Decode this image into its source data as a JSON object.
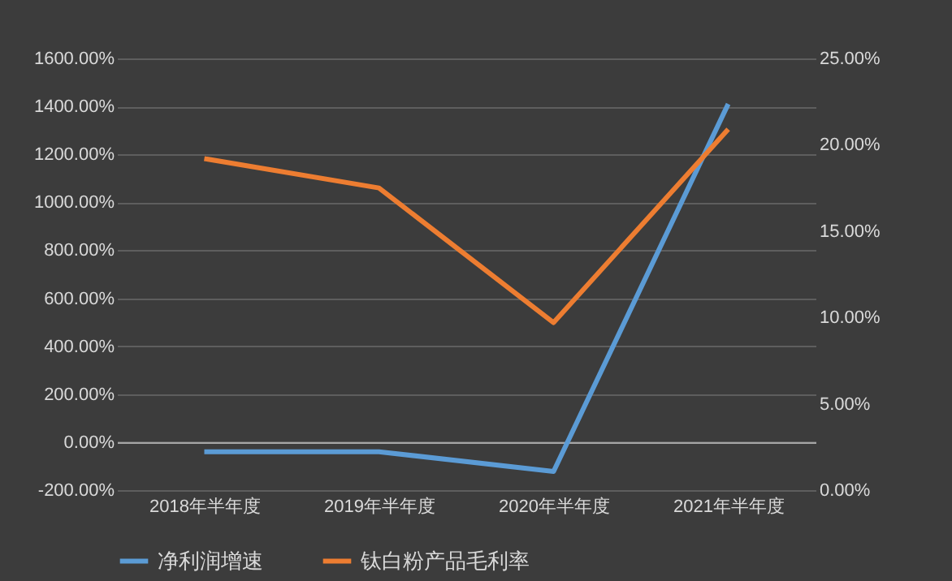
{
  "chart_data": {
    "type": "line",
    "categories": [
      "2018年半年度",
      "2019年半年度",
      "2020年半年度",
      "2021年半年度"
    ],
    "series": [
      {
        "name": "净利润增速",
        "color": "#5b9bd5",
        "values": [
          -40,
          -40,
          -122,
          1410
        ]
      },
      {
        "name": "钛白粉产品毛利率",
        "color": "#ed7d31",
        "values": [
          19.2,
          17.5,
          9.7,
          20.9
        ],
        "axis": "y2"
      }
    ],
    "ylim": [
      -200,
      1600
    ],
    "yticks": [
      {
        "value": -200,
        "label": "-200.00%"
      },
      {
        "value": 0,
        "label": "0.00%"
      },
      {
        "value": 200,
        "label": "200.00%"
      },
      {
        "value": 400,
        "label": "400.00%"
      },
      {
        "value": 600,
        "label": "600.00%"
      },
      {
        "value": 800,
        "label": "800.00%"
      },
      {
        "value": 1000,
        "label": "1000.00%"
      },
      {
        "value": 1200,
        "label": "1200.00%"
      },
      {
        "value": 1400,
        "label": "1400.00%"
      },
      {
        "value": 1600,
        "label": "1600.00%"
      }
    ],
    "y2lim": [
      0,
      25
    ],
    "y2ticks": [
      {
        "value": 0,
        "label": "0.00%"
      },
      {
        "value": 5,
        "label": "5.00%"
      },
      {
        "value": 10,
        "label": "10.00%"
      },
      {
        "value": 15,
        "label": "15.00%"
      },
      {
        "value": 20,
        "label": "20.00%"
      },
      {
        "value": 25,
        "label": "25.00%"
      }
    ],
    "grid": "y",
    "legend": "bottom",
    "marker": "none",
    "line_style": "solid"
  }
}
